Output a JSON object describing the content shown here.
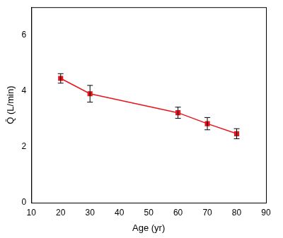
{
  "chart_data": {
    "type": "line",
    "x_label": "Age (yr)",
    "y_label": "Q̄ (L/min)",
    "x": [
      20,
      30,
      60,
      70,
      80
    ],
    "values": [
      4.45,
      3.9,
      3.22,
      2.83,
      2.47
    ],
    "errors": [
      0.17,
      0.3,
      0.2,
      0.22,
      0.18
    ],
    "color": "#e8141c",
    "marker": "square",
    "line_style": "solid",
    "xlim": [
      10,
      90
    ],
    "xticks": [
      10,
      20,
      30,
      40,
      50,
      60,
      70,
      80,
      90
    ],
    "ylim": [
      0,
      7
    ],
    "yticks": [
      0,
      2,
      4,
      6
    ],
    "grid": false
  }
}
